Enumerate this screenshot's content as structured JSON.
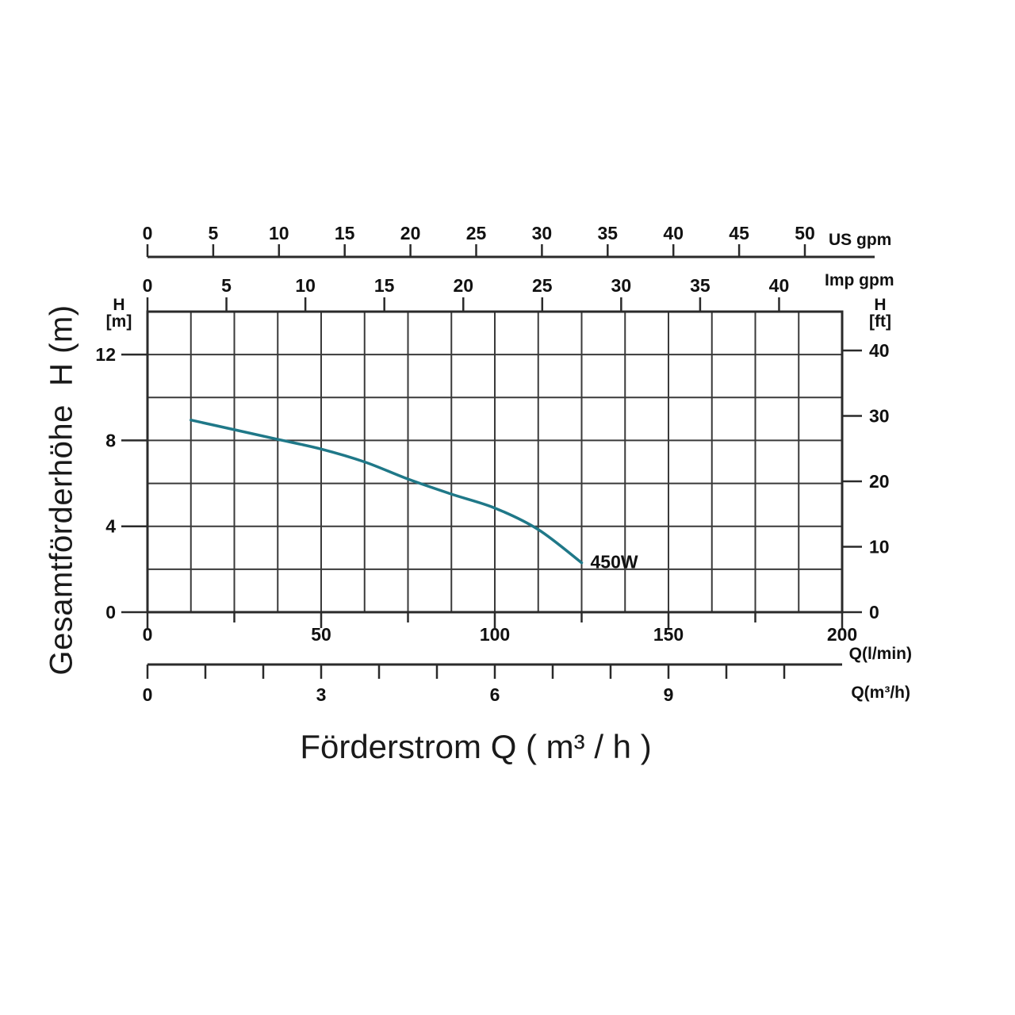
{
  "page": {
    "background": "#ffffff"
  },
  "chart_data": {
    "type": "line",
    "title": "",
    "xlabel": "Förderstrom Q ( m³ / h )",
    "ylabel": "Gesamtförderhöhe  H (m)",
    "x_range_lmin": [
      0,
      200
    ],
    "y_range_m": [
      0,
      14
    ],
    "grid": {
      "columns": 16,
      "rows": 7,
      "on": true
    },
    "colors": {
      "curve": "#1f7888",
      "grid_line": "#3a3a3a",
      "axis_line": "#2a2a2a",
      "text": "#111111"
    },
    "axes": {
      "us_gpm": {
        "unit_label": "US gpm",
        "ticks": [
          0,
          5,
          10,
          15,
          20,
          25,
          30,
          35,
          40,
          45,
          50
        ]
      },
      "imp_gpm": {
        "unit_label": "Imp gpm",
        "ticks": [
          0,
          5,
          10,
          15,
          20,
          25,
          30,
          35,
          40
        ]
      },
      "h_m": {
        "unit_label_line1": "H",
        "unit_label_line2": "[m]",
        "ticks": [
          0,
          4,
          8,
          12
        ],
        "range": [
          0,
          14
        ],
        "gridline_step_m": 2
      },
      "h_ft": {
        "unit_label_line1": "H",
        "unit_label_line2": "[ft]",
        "ticks": [
          0,
          10,
          20,
          30,
          40
        ]
      },
      "q_lmin": {
        "unit_label": "Q(l/min)",
        "labeled_ticks": [
          0,
          50,
          100,
          150,
          200
        ],
        "minor_tick_step": 25
      },
      "q_m3h": {
        "unit_label": "Q(m³/h)",
        "labeled_ticks": [
          0,
          3,
          6,
          9
        ],
        "minor_tick_step": 1,
        "tick_min": 0,
        "tick_max": 11
      }
    },
    "series": [
      {
        "name": "450W",
        "label": "450W",
        "x_q_lmin": [
          12.5,
          25,
          37.5,
          50,
          62.5,
          75,
          87.5,
          100,
          112.5,
          125
        ],
        "y_h_m": [
          8.95,
          8.5,
          8.05,
          7.6,
          7.0,
          6.2,
          5.5,
          4.85,
          3.85,
          2.3
        ]
      }
    ]
  }
}
